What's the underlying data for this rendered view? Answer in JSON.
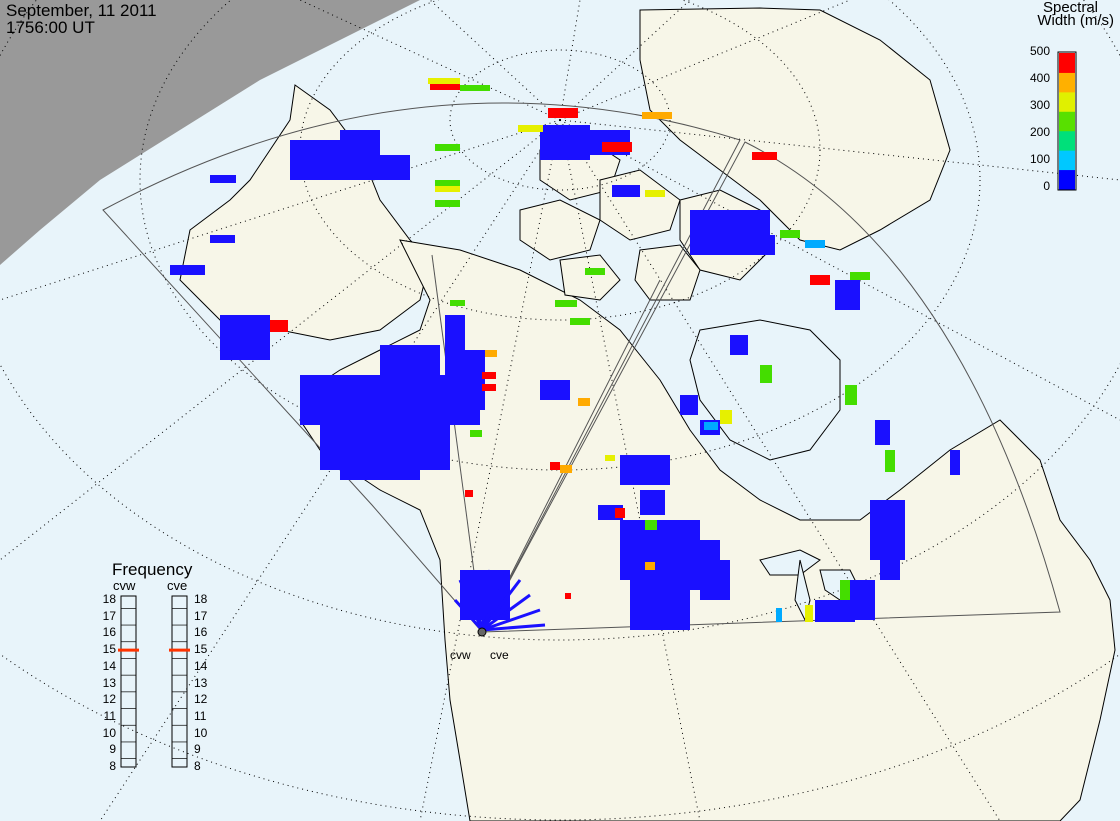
{
  "header": {
    "date": "September, 11 2011",
    "time": "1756:00 UT"
  },
  "colorbar": {
    "title_line1": "Spectral",
    "title_line2": "Width (m/s)",
    "ticks": [
      "500",
      "400",
      "300",
      "200",
      "100",
      "0"
    ],
    "colors": [
      "#0000ff",
      "#00c8ff",
      "#00e07a",
      "#58e000",
      "#e0f000",
      "#ffb000",
      "#ff0000"
    ]
  },
  "frequency_panel": {
    "title": "Frequency",
    "radars": [
      "cvw",
      "cve"
    ],
    "ticks": [
      "18",
      "17",
      "16",
      "15",
      "14",
      "13",
      "12",
      "11",
      "10",
      "9",
      "8"
    ],
    "cvw_value": 15,
    "cve_value": 15,
    "marker_color": "#ff3300"
  },
  "sites": {
    "cvw": "cvw",
    "cve": "cve"
  },
  "map_colors": {
    "ocean": "#e8f4fa",
    "land": "#f7f6e8",
    "night": "#999999",
    "coast": "#000000"
  }
}
